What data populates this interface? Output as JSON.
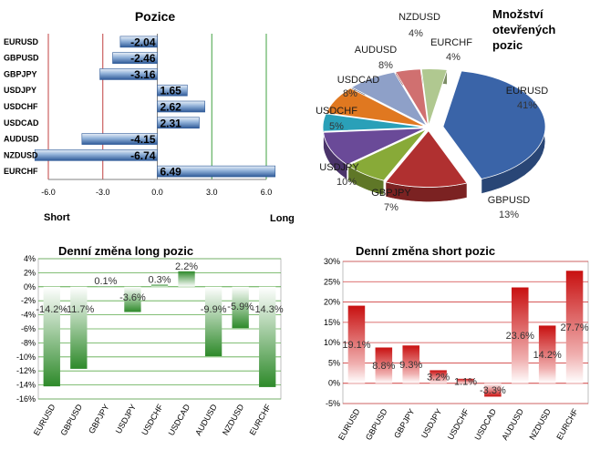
{
  "chart_data": [
    {
      "type": "bar",
      "orientation": "horizontal",
      "title": "Pozice",
      "categories": [
        "EURUSD",
        "GBPUSD",
        "GBPJPY",
        "USDJPY",
        "USDCHF",
        "USDCAD",
        "AUDUSD",
        "NZDUSD",
        "EURCHF"
      ],
      "values": [
        -2.04,
        -2.46,
        -3.16,
        1.65,
        2.62,
        2.31,
        -4.15,
        -6.74,
        6.49
      ],
      "value_labels": [
        "-2.04",
        "-2.46",
        "-3.16",
        "1.65",
        "2.62",
        "2.31",
        "-4.15",
        "-6.74",
        "6.49"
      ],
      "xlim": [
        -6.0,
        6.0
      ],
      "xticks": [
        "-6.0",
        "-3.0",
        "0.0",
        "3.0",
        "6.0"
      ],
      "left_label": "Short",
      "right_label": "Long",
      "colors": {
        "bar": "#4a74b0",
        "neg_line": "#c04040",
        "pos_line": "#40a040"
      }
    },
    {
      "type": "pie",
      "title": [
        "Množství",
        "otevřených",
        "pozic"
      ],
      "labels": [
        "EURUSD",
        "GBPUSD",
        "GBPJPY",
        "USDJPY",
        "USDCHF",
        "USDCAD",
        "AUDUSD",
        "NZDUSD",
        "EURCHF"
      ],
      "values": [
        41,
        13,
        7,
        10,
        5,
        8,
        8,
        4,
        4
      ],
      "percent_labels": [
        "41%",
        "13%",
        "7%",
        "10%",
        "5%",
        "8%",
        "8%",
        "4%",
        "4%"
      ],
      "colors": [
        "#3a64a8",
        "#b03030",
        "#88aa38",
        "#6a4a98",
        "#2aa0b8",
        "#e07820",
        "#8ea0c8",
        "#d07070",
        "#b0c890"
      ]
    },
    {
      "type": "bar",
      "title": "Denní změna long pozic",
      "categories": [
        "EURUSD",
        "GBPUSD",
        "GBPJPY",
        "USDJPY",
        "USDCHF",
        "USDCAD",
        "AUDUSD",
        "NZDUSD",
        "EURCHF"
      ],
      "values": [
        -14.2,
        -11.7,
        0.1,
        -3.6,
        0.3,
        2.2,
        -9.9,
        -5.9,
        -14.3
      ],
      "value_labels": [
        "-14.2%",
        "-11.7%",
        "0.1%",
        "-3.6%",
        "0.3%",
        "2.2%",
        "-9.9%",
        "-5.9%",
        "-14.3%"
      ],
      "ylim": [
        -16,
        4
      ],
      "yticks": [
        "4%",
        "2%",
        "0%",
        "-2%",
        "-4%",
        "-6%",
        "-8%",
        "-10%",
        "-12%",
        "-14%",
        "-16%"
      ],
      "colors": {
        "bar": "#2e8a2a",
        "grid": "#5aaa4a"
      }
    },
    {
      "type": "bar",
      "title": "Denní změna short pozic",
      "categories": [
        "EURUSD",
        "GBPUSD",
        "GBPJPY",
        "USDJPY",
        "USDCHF",
        "USDCAD",
        "AUDUSD",
        "NZDUSD",
        "EURCHF"
      ],
      "values": [
        19.1,
        8.8,
        9.3,
        3.2,
        1.1,
        -3.3,
        23.6,
        14.2,
        27.7
      ],
      "value_labels": [
        "19.1%",
        "8.8%",
        "9.3%",
        "3.2%",
        "1.1%",
        "-3.3%",
        "23.6%",
        "14.2%",
        "27.7%"
      ],
      "ylim": [
        -5,
        30
      ],
      "yticks": [
        "30%",
        "25%",
        "20%",
        "15%",
        "10%",
        "5%",
        "0%",
        "-5%"
      ],
      "colors": {
        "bar": "#c81010",
        "grid": "#d04040"
      }
    }
  ]
}
